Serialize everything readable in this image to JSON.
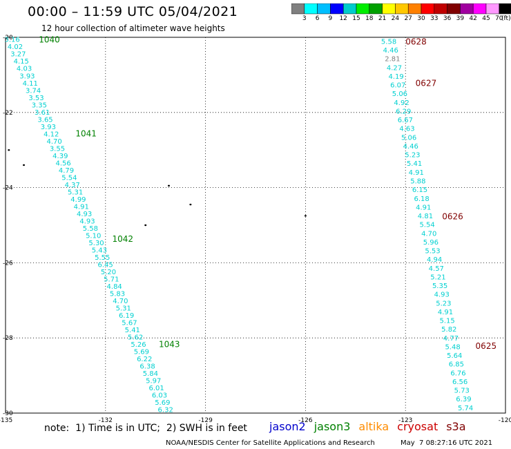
{
  "header": {
    "title": "00:00 – 11:59 UTC 05/04/2021",
    "subtitle": "12 hour collection of altimeter wave heights"
  },
  "colorbar": {
    "colors": [
      "#808080",
      "#00ffff",
      "#00bfff",
      "#0000ff",
      "#00cccc",
      "#00ee00",
      "#00a000",
      "#ffff00",
      "#ffc800",
      "#ff8000",
      "#ff0000",
      "#c00000",
      "#800000",
      "#a000a0",
      "#ff00ff",
      "#ff99ff",
      "#000000"
    ],
    "labels": [
      "3",
      "6",
      "9",
      "12",
      "15",
      "18",
      "21",
      "24",
      "27",
      "30",
      "33",
      "36",
      "39",
      "42",
      "45",
      "70",
      "(ft)"
    ]
  },
  "axes": {
    "x_ticks": [
      "-135",
      "-132",
      "-129",
      "-126",
      "-123",
      "-120"
    ],
    "y_ticks": [
      "-20",
      "-22",
      "-24",
      "-26",
      "-28",
      "-30"
    ],
    "lon_range": [
      -135,
      -120
    ],
    "lat_range": [
      -30,
      -20
    ]
  },
  "tracks": [
    {
      "satellite": "jason3",
      "label_color": "#008000",
      "value_color": "#00d0d0",
      "values": [
        "3.16",
        "4.02",
        "3.27",
        "4.15",
        "4.03",
        "3.93",
        "4.11",
        "3.74",
        "3.53",
        "3.35",
        "3.61",
        "3.65",
        "3.93",
        "4.12",
        "4.70",
        "3.55",
        "4.39",
        "4.56",
        "4.79",
        "5.54",
        "4.37",
        "5.31",
        "4.99",
        "4.91",
        "4.93",
        "4.93",
        "5.58",
        "5.10",
        "5.30",
        "5.43",
        "5.55",
        "6.45",
        "5.20",
        "5.71",
        "4.84",
        "5.83",
        "4.70",
        "5.31",
        "6.19",
        "5.67",
        "5.41",
        "5.62",
        "5.26",
        "5.69",
        "6.22",
        "6.38",
        "5.84",
        "5.97",
        "6.01",
        "6.03",
        "5.69",
        "6.32"
      ],
      "start": {
        "lon": -134.8,
        "lat": -20.05
      },
      "end": {
        "lon": -130.2,
        "lat": -29.9
      },
      "time_labels": [
        {
          "text": "1040",
          "lon": -134.0,
          "lat": -20.05
        },
        {
          "text": "1041",
          "lon": -132.9,
          "lat": -22.55
        },
        {
          "text": "1042",
          "lon": -131.8,
          "lat": -25.35
        },
        {
          "text": "1043",
          "lon": -130.4,
          "lat": -28.15
        }
      ]
    },
    {
      "satellite": "cryosat",
      "label_color": "#800000",
      "value_color": "#00d0d0",
      "values": [
        "5.58",
        "4.46",
        "2.81",
        "4.27",
        "4.19",
        "6.07",
        "5.06",
        "4.92",
        "6.29",
        "6.67",
        "4.63",
        "5.06",
        "4.46",
        "5.23",
        "5.41",
        "4.91",
        "5.88",
        "6.15",
        "6.18",
        "4.91",
        "4.81",
        "5.54",
        "4.70",
        "5.96",
        "5.53",
        "4.94",
        "4.57",
        "5.21",
        "5.35",
        "4.93",
        "5.23",
        "4.91",
        "5.15",
        "5.82",
        "4.77",
        "5.48",
        "5.64",
        "6.85",
        "6.76",
        "6.56",
        "5.73",
        "6.39",
        "5.74"
      ],
      "start": {
        "lon": -123.5,
        "lat": -20.1
      },
      "end": {
        "lon": -121.2,
        "lat": -29.85
      },
      "time_labels": [
        {
          "text": "0628",
          "lon": -123.0,
          "lat": -20.1
        },
        {
          "text": "0627",
          "lon": -122.7,
          "lat": -21.2
        },
        {
          "text": "0626",
          "lon": -121.9,
          "lat": -24.75
        },
        {
          "text": "0625",
          "lon": -120.9,
          "lat": -28.2
        }
      ]
    }
  ],
  "footer": {
    "note": "note:  1) Time is in UTC;  2) SWH is in feet",
    "satellites": [
      {
        "name": "jason2",
        "color": "#0000cc"
      },
      {
        "name": "jason3",
        "color": "#008000"
      },
      {
        "name": "altika",
        "color": "#ff8c00"
      },
      {
        "name": "cryosat",
        "color": "#cc0000"
      },
      {
        "name": "s3a",
        "color": "#800000"
      }
    ],
    "credit": "NOAA/NESDIS Center for Satellite Applications and Research",
    "timestamp": "May  7 08:27:16 UTC 2021"
  }
}
